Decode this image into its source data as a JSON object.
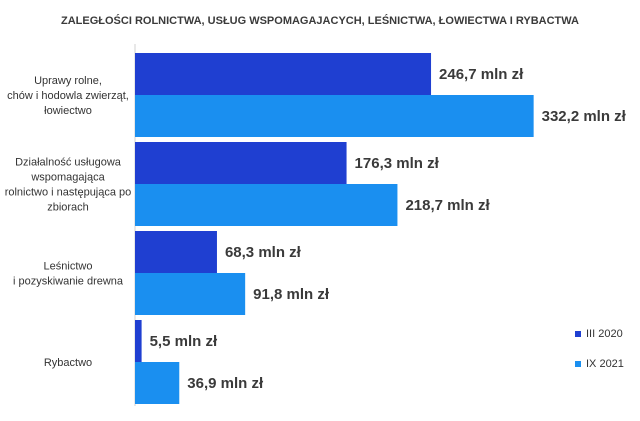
{
  "chart_data": {
    "type": "bar",
    "orientation": "horizontal",
    "title": "ZALEGŁOŚCI ROLNICTWA, USŁUG WSPOMAGAJACYCH, LEŚNICTWA, ŁOWIECTWA I RYBACTWA",
    "categories": [
      [
        "Uprawy rolne,",
        "chów i hodowla zwierząt,",
        "łowiectwo"
      ],
      [
        "Działalność usługowa",
        "wspomagająca",
        "rolnictwo i następująca po",
        "zbiorach"
      ],
      [
        "Leśnictwo",
        "i pozyskiwanie drewna"
      ],
      [
        "Rybactwo"
      ]
    ],
    "series": [
      {
        "name": "III 2020",
        "color": "#1f3fd1",
        "values": [
          246.7,
          176.3,
          68.3,
          5.5
        ],
        "labels": [
          "246,7 mln zł",
          "176,3 mln zł",
          "68,3 mln zł",
          "5,5 mln zł"
        ]
      },
      {
        "name": "IX 2021",
        "color": "#1a8ff0",
        "values": [
          332.2,
          218.7,
          91.8,
          36.9
        ],
        "labels": [
          "332,2 mln zł",
          "218,7 mln zł",
          "91,8 mln zł",
          "36,9 mln zł"
        ]
      }
    ],
    "xlim": [
      0,
      400
    ],
    "grid": false,
    "legend_position": "bottom-right"
  }
}
